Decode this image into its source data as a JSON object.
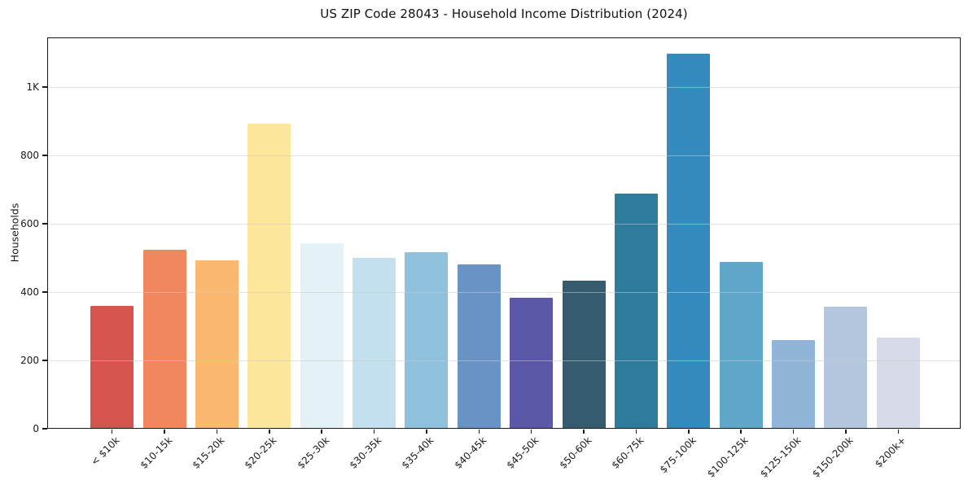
{
  "chart_data": {
    "type": "bar",
    "title": "US ZIP Code 28043 - Household Income Distribution (2024)",
    "xlabel": "",
    "ylabel": "Households",
    "categories": [
      "< $10k",
      "$10-15k",
      "$15-20k",
      "$20-25k",
      "$25-30k",
      "$30-35k",
      "$35-40k",
      "$40-45k",
      "$45-50k",
      "$50-60k",
      "$60-75k",
      "$75-100k",
      "$100-125k",
      "$125-150k",
      "$150-200k",
      "$200k+"
    ],
    "values": [
      358,
      522,
      491,
      890,
      541,
      497,
      515,
      479,
      381,
      431,
      686,
      1094,
      485,
      257,
      355,
      265
    ],
    "bar_colors": [
      "#d6544e",
      "#f0875f",
      "#fbb871",
      "#fde79c",
      "#e4f1f6",
      "#c2e0ed",
      "#8fc0dc",
      "#6992c5",
      "#5a58a7",
      "#355c6e",
      "#2e7b9d",
      "#368bbe",
      "#5ea7cb",
      "#91b5d9",
      "#b5c6df",
      "#d7dae8"
    ],
    "yticks": [
      {
        "value": 0,
        "label": "0"
      },
      {
        "value": 200,
        "label": "200"
      },
      {
        "value": 400,
        "label": "400"
      },
      {
        "value": 600,
        "label": "600"
      },
      {
        "value": 800,
        "label": "800"
      },
      {
        "value": 1000,
        "label": "1K"
      }
    ],
    "ylim": [
      0,
      1145
    ],
    "grid": "horizontal",
    "legend": "none",
    "text_color": "#1a1a1a",
    "background_color": "#ffffff"
  }
}
